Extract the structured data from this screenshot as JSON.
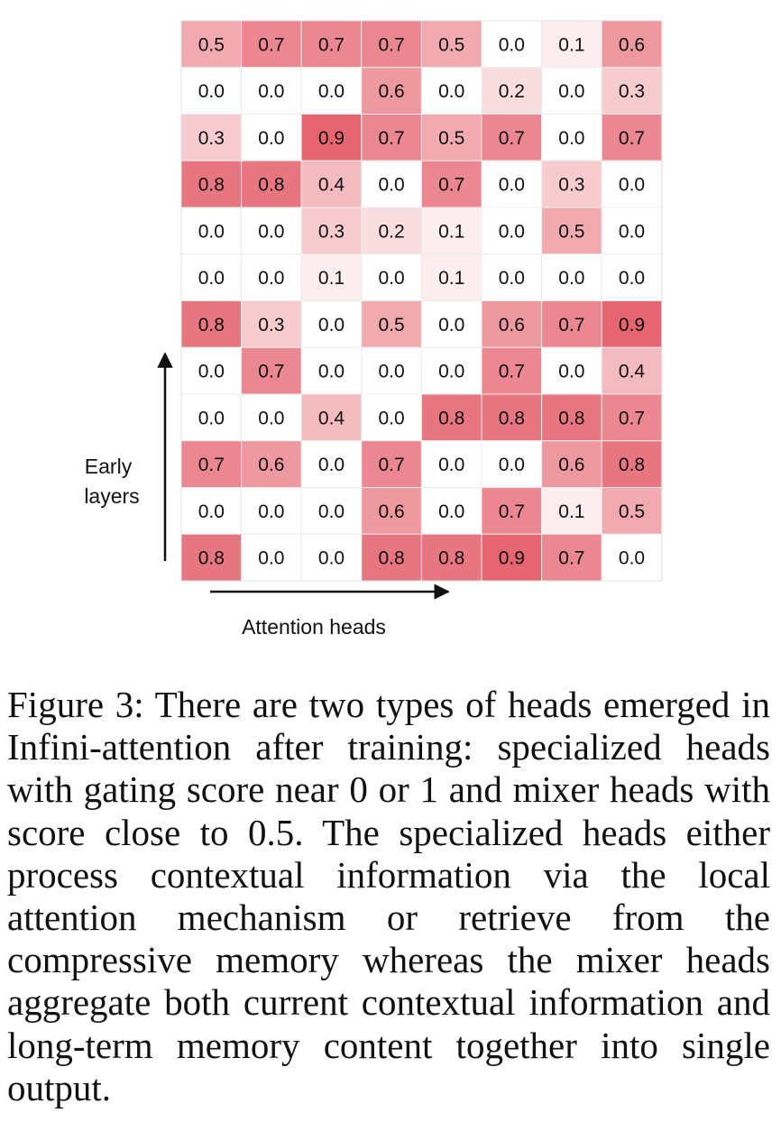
{
  "chart_data": {
    "type": "heatmap",
    "rows": [
      [
        0.5,
        0.7,
        0.7,
        0.7,
        0.5,
        0.0,
        0.1,
        0.6
      ],
      [
        0.0,
        0.0,
        0.0,
        0.6,
        0.0,
        0.2,
        0.0,
        0.3
      ],
      [
        0.3,
        0.0,
        0.9,
        0.7,
        0.5,
        0.7,
        0.0,
        0.7
      ],
      [
        0.8,
        0.8,
        0.4,
        0.0,
        0.7,
        0.0,
        0.3,
        0.0
      ],
      [
        0.0,
        0.0,
        0.3,
        0.2,
        0.1,
        0.0,
        0.5,
        0.0
      ],
      [
        0.0,
        0.0,
        0.1,
        0.0,
        0.1,
        0.0,
        0.0,
        0.0
      ],
      [
        0.8,
        0.3,
        0.0,
        0.5,
        0.0,
        0.6,
        0.7,
        0.9
      ],
      [
        0.0,
        0.7,
        0.0,
        0.0,
        0.0,
        0.7,
        0.0,
        0.4
      ],
      [
        0.0,
        0.0,
        0.4,
        0.0,
        0.8,
        0.8,
        0.8,
        0.7
      ],
      [
        0.7,
        0.6,
        0.0,
        0.7,
        0.0,
        0.0,
        0.6,
        0.8
      ],
      [
        0.0,
        0.0,
        0.0,
        0.6,
        0.0,
        0.7,
        0.1,
        0.5
      ],
      [
        0.8,
        0.0,
        0.0,
        0.8,
        0.8,
        0.9,
        0.7,
        0.0
      ]
    ],
    "value_range": [
      0,
      1
    ],
    "colorscale": {
      "low": "#ffffff",
      "high": "#e25460"
    },
    "ylabel_lines": [
      "Early",
      "layers"
    ],
    "xlabel": "Attention heads",
    "grid": true,
    "legend": "none"
  },
  "caption": "Figure 3:  There are two types of heads emerged in Infini-attention after training: specialized heads with gating score near 0 or 1 and mixer heads with score close to 0.5. The specialized heads either process contextual information via the local attention mechanism or retrieve from the compressive memory whereas the mixer heads aggregate both current contextual information and long-term memory content together into single output."
}
